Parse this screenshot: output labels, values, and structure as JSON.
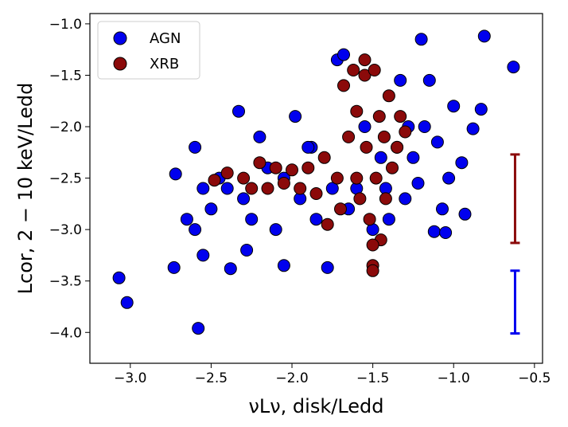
{
  "chart_data": {
    "type": "scatter",
    "xlabel": "νLν, disk/Ledd",
    "ylabel": "Lcor, 2 − 10 keV/Ledd",
    "xlim": [
      -3.25,
      -0.45
    ],
    "ylim": [
      -4.3,
      -0.9
    ],
    "xticks": [
      "−3.0",
      "−2.5",
      "−2.0",
      "−1.5",
      "−1.0",
      "−0.5"
    ],
    "xtick_values": [
      -3.0,
      -2.5,
      -2.0,
      -1.5,
      -1.0,
      -0.5
    ],
    "yticks": [
      "−1.0",
      "−1.5",
      "−2.0",
      "−2.5",
      "−3.0",
      "−3.5",
      "−4.0"
    ],
    "ytick_values": [
      -1.0,
      -1.5,
      -2.0,
      -2.5,
      -3.0,
      -3.5,
      -4.0
    ],
    "legend": {
      "position": "top-left",
      "entries": [
        "AGN",
        "XRB"
      ]
    },
    "grid": false,
    "colors": {
      "AGN": "#0000ee",
      "XRB": "#8b0a0a",
      "edge": "#000000"
    },
    "series": [
      {
        "name": "AGN",
        "marker": "circle",
        "points": [
          [
            -3.07,
            -3.47
          ],
          [
            -3.02,
            -3.71
          ],
          [
            -2.73,
            -3.37
          ],
          [
            -2.72,
            -2.46
          ],
          [
            -2.6,
            -2.2
          ],
          [
            -2.58,
            -3.96
          ],
          [
            -2.55,
            -3.25
          ],
          [
            -2.5,
            -2.8
          ],
          [
            -2.45,
            -2.5
          ],
          [
            -2.38,
            -3.38
          ],
          [
            -2.33,
            -1.85
          ],
          [
            -2.28,
            -3.2
          ],
          [
            -2.2,
            -2.1
          ],
          [
            -2.1,
            -3.0
          ],
          [
            -2.05,
            -3.35
          ],
          [
            -1.98,
            -1.9
          ],
          [
            -1.88,
            -2.2
          ],
          [
            -1.78,
            -3.37
          ],
          [
            -1.72,
            -1.35
          ],
          [
            -1.68,
            -1.3
          ],
          [
            -1.6,
            -2.6
          ],
          [
            -1.5,
            -3.0
          ],
          [
            -1.45,
            -2.3
          ],
          [
            -1.4,
            -2.9
          ],
          [
            -1.33,
            -1.55
          ],
          [
            -1.28,
            -2.0
          ],
          [
            -1.22,
            -2.55
          ],
          [
            -1.2,
            -1.15
          ],
          [
            -1.15,
            -1.55
          ],
          [
            -1.12,
            -3.02
          ],
          [
            -1.1,
            -2.15
          ],
          [
            -1.07,
            -2.8
          ],
          [
            -1.05,
            -3.03
          ],
          [
            -1.03,
            -2.5
          ],
          [
            -1.0,
            -1.8
          ],
          [
            -0.95,
            -2.35
          ],
          [
            -0.93,
            -2.85
          ],
          [
            -0.88,
            -2.02
          ],
          [
            -0.83,
            -1.83
          ],
          [
            -0.81,
            -1.12
          ],
          [
            -0.63,
            -1.42
          ],
          [
            -2.4,
            -2.6
          ],
          [
            -2.3,
            -2.7
          ],
          [
            -2.25,
            -2.9
          ],
          [
            -2.15,
            -2.4
          ],
          [
            -2.05,
            -2.5
          ],
          [
            -1.95,
            -2.7
          ],
          [
            -1.9,
            -2.2
          ],
          [
            -1.85,
            -2.9
          ],
          [
            -1.75,
            -2.6
          ],
          [
            -1.65,
            -2.8
          ],
          [
            -1.55,
            -2.0
          ],
          [
            -1.42,
            -2.6
          ],
          [
            -1.35,
            -2.2
          ],
          [
            -1.3,
            -2.7
          ],
          [
            -1.25,
            -2.3
          ],
          [
            -1.18,
            -2.0
          ],
          [
            -2.65,
            -2.9
          ],
          [
            -2.6,
            -3.0
          ],
          [
            -2.55,
            -2.6
          ]
        ]
      },
      {
        "name": "XRB",
        "marker": "circle",
        "points": [
          [
            -2.48,
            -2.52
          ],
          [
            -2.4,
            -2.45
          ],
          [
            -2.3,
            -2.5
          ],
          [
            -2.2,
            -2.35
          ],
          [
            -2.1,
            -2.4
          ],
          [
            -2.0,
            -2.42
          ],
          [
            -1.9,
            -2.4
          ],
          [
            -1.8,
            -2.3
          ],
          [
            -1.72,
            -2.5
          ],
          [
            -1.68,
            -1.6
          ],
          [
            -1.65,
            -2.1
          ],
          [
            -1.62,
            -1.45
          ],
          [
            -1.6,
            -1.85
          ],
          [
            -1.58,
            -2.7
          ],
          [
            -1.55,
            -1.5
          ],
          [
            -1.54,
            -2.2
          ],
          [
            -1.52,
            -2.9
          ],
          [
            -1.5,
            -3.35
          ],
          [
            -1.49,
            -1.45
          ],
          [
            -1.48,
            -2.5
          ],
          [
            -1.46,
            -1.9
          ],
          [
            -1.45,
            -3.1
          ],
          [
            -1.43,
            -2.1
          ],
          [
            -1.42,
            -2.7
          ],
          [
            -1.4,
            -1.7
          ],
          [
            -1.38,
            -2.4
          ],
          [
            -1.35,
            -2.2
          ],
          [
            -1.33,
            -1.9
          ],
          [
            -1.3,
            -2.05
          ],
          [
            -1.55,
            -1.35
          ],
          [
            -1.6,
            -2.5
          ],
          [
            -1.7,
            -2.8
          ],
          [
            -1.78,
            -2.95
          ],
          [
            -1.85,
            -2.65
          ],
          [
            -1.95,
            -2.6
          ],
          [
            -2.05,
            -2.55
          ],
          [
            -2.15,
            -2.6
          ],
          [
            -2.25,
            -2.6
          ],
          [
            -1.5,
            -3.4
          ],
          [
            -1.5,
            -3.15
          ]
        ]
      }
    ],
    "reference_errorbars": [
      {
        "name": "XRB",
        "x": -0.62,
        "y_low": -3.13,
        "y_high": -2.27
      },
      {
        "name": "AGN",
        "x": -0.62,
        "y_low": -4.01,
        "y_high": -3.4
      }
    ]
  }
}
